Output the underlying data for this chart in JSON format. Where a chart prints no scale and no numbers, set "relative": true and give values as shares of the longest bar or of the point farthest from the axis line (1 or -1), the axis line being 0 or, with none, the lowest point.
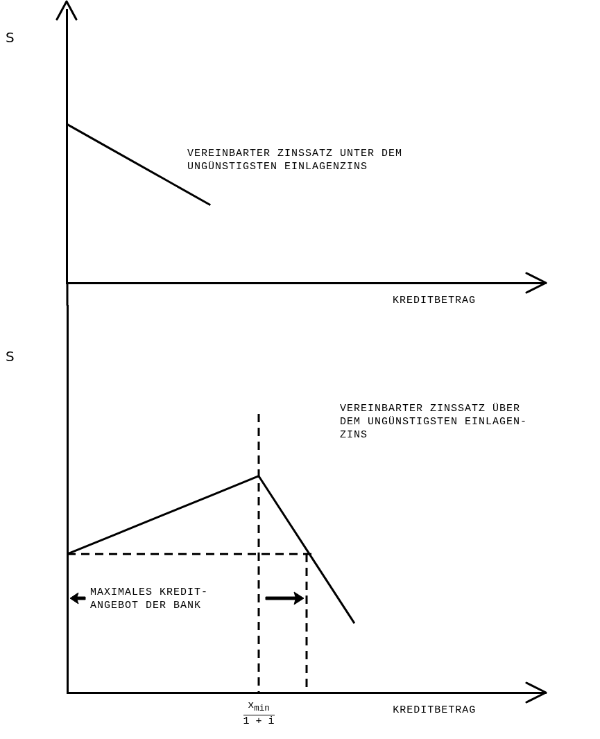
{
  "chart_data": [
    {
      "type": "line",
      "ylabel": "S",
      "xlabel": "KREDITBETRAG",
      "relative": true,
      "categories": [
        null,
        null,
        null,
        null,
        null,
        null,
        null,
        null,
        null,
        null,
        null
      ],
      "grid": false,
      "legend": false,
      "marker": "none",
      "annotations": [
        "VEREINBARTER ZINSSATZ UNTER DEM\nUNGÜNSTIGSTEN EINLAGENZINS"
      ],
      "series": [
        {
          "color": "#000000",
          "line_style": "solid",
          "values": [
            1,
            0.83,
            0.66,
            0.49,
            null,
            null,
            null,
            null,
            null,
            null,
            null
          ]
        }
      ]
    },
    {
      "type": "line",
      "ylabel": "S",
      "xlabel": "KREDITBETRAG",
      "relative": true,
      "categories": [
        null,
        null,
        null,
        null,
        null,
        null,
        null,
        null,
        null,
        null,
        null
      ],
      "grid": false,
      "legend": false,
      "marker": "none",
      "annotations": [
        "VEREINBARTER ZINSSATZ ÜBER\nDEM UNGÜNSTIGSTEN EINLAGEN-\nZINS",
        "MAXIMALES KREDIT-\nANGEBOT DER BANK",
        "x$_{min}$\n1 + i"
      ],
      "ref_lines": [
        {
          "axis": "y",
          "value": 0.64,
          "color": "#000000",
          "line_style": "dashed"
        }
      ],
      "series": [
        {
          "color": "#000000",
          "line_style": "solid",
          "values": [
            0.64,
            0.73,
            0.82,
            0.91,
            1,
            0.66,
            0.32,
            null,
            null,
            null,
            null
          ]
        }
      ]
    }
  ]
}
